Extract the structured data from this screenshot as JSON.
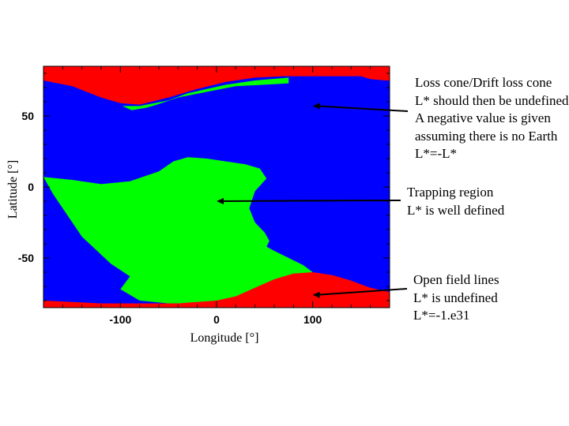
{
  "chart_data": {
    "type": "heatmap",
    "title": "",
    "xlabel": "Longitude [°]",
    "ylabel": "Latitude [°]",
    "xlim": [
      -180,
      180
    ],
    "ylim": [
      -85,
      85
    ],
    "xticks": [
      -100,
      0,
      100
    ],
    "yticks": [
      -50,
      0,
      50
    ],
    "grid": false,
    "colors": {
      "loss_cone": "#ff0000",
      "trapping": "#00ff00",
      "open_field_lines": "#0000ff"
    },
    "regions": {
      "loss_cone_upper_boundary": {
        "lon": [
          -180,
          -150,
          -120,
          -100,
          -80,
          -50,
          -20,
          10,
          40,
          70,
          100,
          130,
          150,
          160,
          175,
          180
        ],
        "lat": [
          75,
          71,
          63,
          59,
          58,
          63,
          69,
          74,
          77,
          78,
          78,
          78,
          78,
          76,
          75,
          75
        ]
      },
      "loss_cone_lower_boundary": {
        "lon": [
          -180,
          -150,
          -120,
          -100,
          -80,
          -60,
          -40,
          -20,
          0,
          20,
          40,
          60,
          80,
          100,
          120,
          140,
          160,
          180
        ],
        "lat": [
          -80,
          -81,
          -82,
          -82,
          -82,
          -82,
          -82,
          -81,
          -80,
          -77,
          -71,
          -65,
          -61,
          -60,
          -62,
          -66,
          -71,
          -74
        ]
      },
      "trapping_region_outline": {
        "lon": [
          -180,
          -150,
          -120,
          -90,
          -60,
          -45,
          -30,
          -10,
          10,
          30,
          45,
          52,
          40,
          34,
          40,
          50,
          55,
          52,
          60,
          75,
          90,
          100,
          70,
          40,
          10,
          -20,
          -50,
          -80,
          -100,
          -90,
          -110,
          -140,
          -170,
          -180
        ],
        "lat": [
          7,
          5,
          2,
          4,
          11,
          18,
          21,
          20,
          18,
          16,
          13,
          6,
          -3,
          -15,
          -25,
          -32,
          -38,
          -42,
          -45,
          -50,
          -55,
          -60,
          -66,
          -74,
          -79,
          -82,
          -82,
          -80,
          -72,
          -63,
          -54,
          -35,
          -5,
          7
        ]
      },
      "loss_cone_edge_patches": [
        {
          "lon": [
            -98,
            -80,
            -50,
            -30,
            10,
            40,
            75,
            75,
            50,
            20,
            -10,
            -40,
            -62,
            -72,
            -88,
            -98
          ],
          "lat": [
            57,
            57,
            61,
            66,
            72,
            75,
            77,
            73,
            72,
            71,
            67,
            63,
            58,
            56,
            54,
            57
          ]
        }
      ]
    },
    "series": [
      {
        "name": "Loss cone/Drift loss cone",
        "color": "#ff0000"
      },
      {
        "name": "Trapping region",
        "color": "#00ff00"
      },
      {
        "name": "Open field lines",
        "color": "#0000ff"
      }
    ]
  },
  "annotations": {
    "loss_cone": {
      "lines": [
        "Loss cone/Drift loss cone",
        "L* should then be undefined",
        "A negative value is given",
        "assuming there is no Earth",
        "L*=-L*"
      ],
      "target": {
        "lon": 100,
        "lat": 57
      }
    },
    "trapping": {
      "lines": [
        "Trapping region",
        "L* is well defined"
      ],
      "target": {
        "lon": 0,
        "lat": -10
      }
    },
    "open_field": {
      "lines": [
        "Open field lines",
        "L* is undefined",
        "L*=-1.e31"
      ],
      "target": {
        "lon": 100,
        "lat": -76
      }
    }
  }
}
